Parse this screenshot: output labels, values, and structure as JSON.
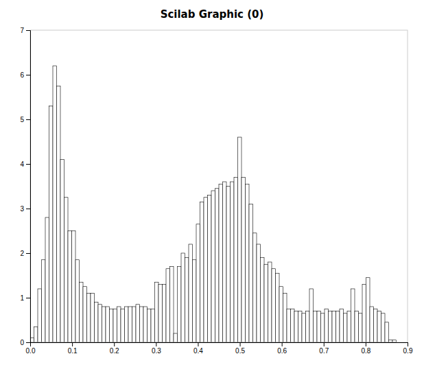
{
  "chart_data": {
    "type": "histogram",
    "title": "Scilab Graphic (0)",
    "bins": [
      0.0,
      0.009,
      0.018,
      0.027,
      0.036,
      0.045,
      0.054,
      0.063,
      0.072,
      0.081,
      0.09,
      0.099,
      0.108,
      0.117,
      0.126,
      0.135,
      0.144,
      0.153,
      0.162,
      0.171,
      0.18,
      0.189,
      0.198,
      0.207,
      0.216,
      0.225,
      0.234,
      0.243,
      0.252,
      0.261,
      0.27,
      0.279,
      0.288,
      0.297,
      0.306,
      0.315,
      0.324,
      0.333,
      0.342,
      0.351,
      0.36,
      0.369,
      0.378,
      0.387,
      0.396,
      0.405,
      0.414,
      0.423,
      0.432,
      0.441,
      0.45,
      0.459,
      0.468,
      0.477,
      0.486,
      0.495,
      0.504,
      0.513,
      0.522,
      0.531,
      0.54,
      0.549,
      0.558,
      0.567,
      0.576,
      0.585,
      0.594,
      0.603,
      0.612,
      0.621,
      0.63,
      0.639,
      0.648,
      0.657,
      0.666,
      0.675,
      0.684,
      0.693,
      0.702,
      0.711,
      0.72,
      0.729,
      0.738,
      0.747,
      0.756,
      0.765,
      0.774,
      0.783,
      0.792,
      0.801,
      0.81,
      0.819,
      0.828,
      0.837,
      0.846,
      0.855,
      0.864,
      0.873,
      0.882,
      0.891,
      0.9
    ],
    "counts": [
      0.1,
      0.35,
      1.2,
      1.85,
      2.8,
      5.3,
      6.2,
      5.75,
      4.1,
      3.25,
      2.5,
      2.5,
      1.85,
      1.35,
      1.25,
      1.1,
      1.1,
      0.9,
      0.85,
      0.8,
      0.8,
      0.75,
      0.75,
      0.8,
      0.75,
      0.8,
      0.8,
      0.8,
      0.85,
      0.8,
      0.8,
      0.75,
      0.75,
      1.35,
      1.3,
      1.3,
      1.65,
      1.7,
      0.2,
      1.7,
      2.0,
      1.9,
      2.2,
      1.85,
      2.65,
      3.15,
      3.25,
      3.3,
      3.4,
      3.45,
      3.55,
      3.6,
      3.5,
      3.6,
      3.7,
      4.6,
      3.7,
      3.55,
      3.1,
      2.45,
      2.2,
      1.9,
      1.75,
      1.8,
      1.65,
      1.55,
      1.25,
      1.1,
      0.75,
      0.75,
      0.7,
      0.7,
      0.65,
      0.7,
      1.2,
      0.7,
      0.7,
      0.65,
      0.75,
      0.7,
      0.7,
      0.7,
      0.75,
      0.65,
      0.7,
      1.2,
      0.7,
      0.65,
      1.3,
      1.45,
      0.8,
      0.75,
      0.7,
      0.65,
      0.45,
      0.05,
      0.05,
      0.0,
      0.0,
      0.0
    ],
    "color": "#ffffff",
    "xlim": [
      0.0,
      0.9
    ],
    "ylim": [
      0,
      7
    ],
    "xticks": [
      {
        "value": 0,
        "label": "0.0"
      },
      0.1,
      0.2,
      0.3,
      0.4,
      0.5,
      0.6,
      0.7,
      0.8,
      0.9
    ],
    "yticks": [
      0,
      1,
      2,
      3,
      4,
      5,
      6,
      7
    ]
  }
}
